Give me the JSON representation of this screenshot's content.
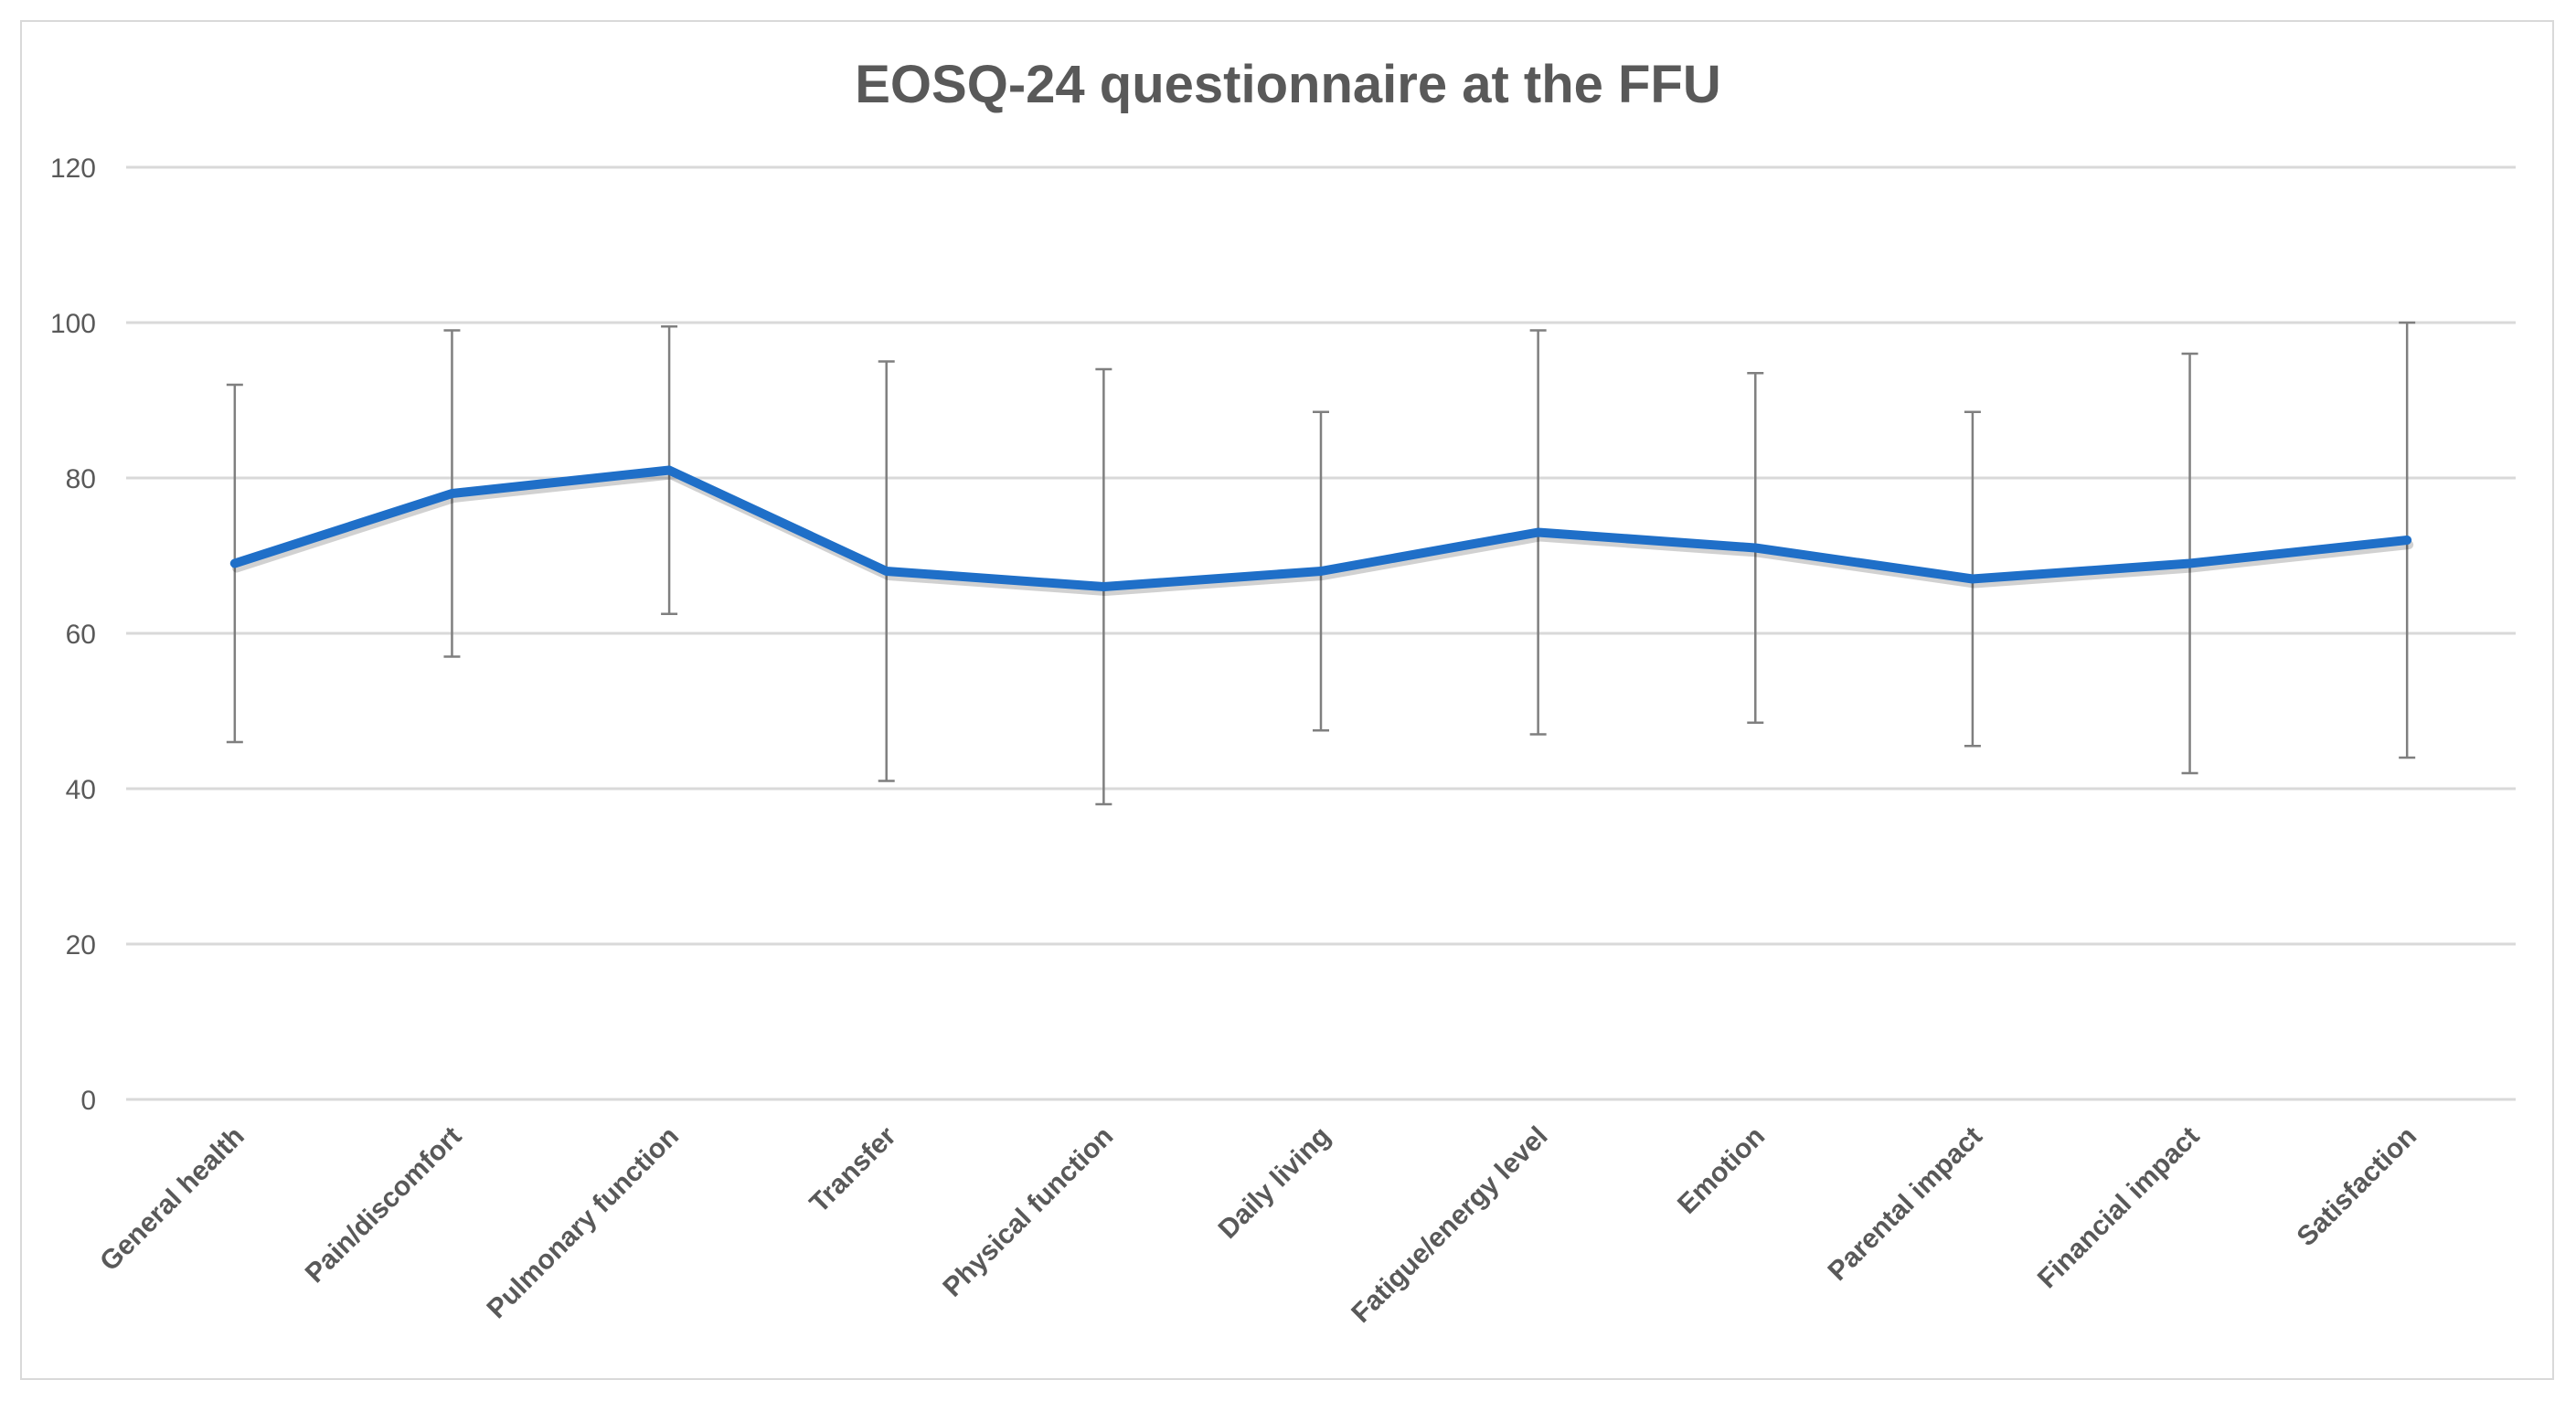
{
  "chart_data": {
    "type": "line",
    "title": "EOSQ-24 questionnaire at the FFU",
    "xlabel": "",
    "ylabel": "",
    "ylim": [
      0,
      120
    ],
    "yticks": [
      0,
      20,
      40,
      60,
      80,
      100,
      120
    ],
    "grid": true,
    "legend": "none",
    "categories": [
      "General health",
      "Pain/discomfort",
      "Pulmonary function",
      "Transfer",
      "Physical function",
      "Daily living",
      "Fatigue/energy level",
      "Emotion",
      "Parental impact",
      "Financial impact",
      "Satisfaction"
    ],
    "series": [
      {
        "values": [
          69,
          78,
          81,
          68,
          66,
          68,
          73,
          71,
          67,
          69,
          72
        ],
        "error_low": [
          46,
          57,
          62.5,
          41,
          38,
          47.5,
          47,
          48.5,
          45.5,
          42,
          44
        ],
        "error_high": [
          92,
          99,
          99.5,
          95,
          94,
          88.5,
          99,
          93.5,
          88.5,
          96,
          100
        ],
        "color": "#1f6fc8"
      }
    ],
    "colors": {
      "line": "#1f6fc8",
      "error_bar": "#7f7f7f",
      "grid": "#d9d9d9",
      "text": "#595959"
    }
  }
}
